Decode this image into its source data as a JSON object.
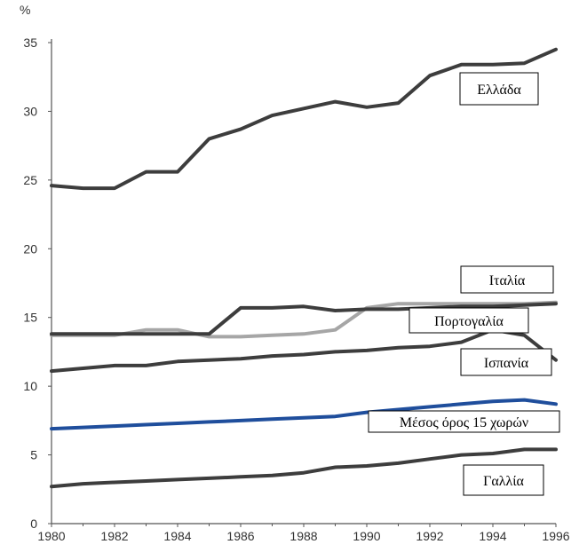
{
  "chart_data": {
    "type": "line",
    "title": "",
    "unit_label": "%",
    "xlabel": "",
    "ylabel": "%",
    "xlim": [
      1980,
      1996
    ],
    "ylim": [
      0,
      35
    ],
    "x_ticks": [
      1980,
      1982,
      1984,
      1986,
      1988,
      1990,
      1992,
      1994,
      1996
    ],
    "y_ticks": [
      0,
      5,
      10,
      15,
      20,
      25,
      30,
      35
    ],
    "grid": false,
    "x": [
      1980,
      1981,
      1982,
      1983,
      1984,
      1985,
      1986,
      1987,
      1988,
      1989,
      1990,
      1991,
      1992,
      1993,
      1994,
      1995,
      1996
    ],
    "series": [
      {
        "name": "Ελλάδα",
        "color": "#3d3d3d",
        "values": [
          24.6,
          24.4,
          24.4,
          25.6,
          25.6,
          28.0,
          28.7,
          29.7,
          30.2,
          30.7,
          30.3,
          30.6,
          32.6,
          33.4,
          33.4,
          33.5,
          34.5
        ]
      },
      {
        "name": "Ιταλία",
        "color": "#3d3d3d",
        "values": [
          13.8,
          13.8,
          13.8,
          13.8,
          13.8,
          13.8,
          15.7,
          15.7,
          15.8,
          15.5,
          15.6,
          15.6,
          15.7,
          15.8,
          15.8,
          15.9,
          16.0
        ]
      },
      {
        "name": "Πορτογαλία",
        "color": "#a6a6a6",
        "values": [
          13.7,
          13.7,
          13.7,
          14.1,
          14.1,
          13.6,
          13.6,
          13.7,
          13.8,
          14.1,
          15.7,
          16.0,
          16.0,
          16.0,
          16.0,
          16.0,
          16.1
        ]
      },
      {
        "name": "Ισπανία",
        "color": "#3d3d3d",
        "values": [
          11.1,
          11.3,
          11.5,
          11.5,
          11.8,
          11.9,
          12.0,
          12.2,
          12.3,
          12.5,
          12.6,
          12.8,
          12.9,
          13.2,
          14.1,
          13.7,
          11.9
        ]
      },
      {
        "name": "Μέσος όρος 15 χωρών",
        "color": "#1f4e9c",
        "values": [
          6.9,
          7.0,
          7.1,
          7.2,
          7.3,
          7.4,
          7.5,
          7.6,
          7.7,
          7.8,
          8.1,
          8.3,
          8.5,
          8.7,
          8.9,
          9.0,
          8.7
        ]
      },
      {
        "name": "Γαλλία",
        "color": "#3d3d3d",
        "values": [
          2.7,
          2.9,
          3.0,
          3.1,
          3.2,
          3.3,
          3.4,
          3.5,
          3.7,
          4.1,
          4.2,
          4.4,
          4.7,
          5.0,
          5.1,
          5.4,
          5.4
        ]
      }
    ],
    "legend_labels": [
      "Ελλάδα",
      "Ιταλία",
      "Πορτογαλία",
      "Ισπανία",
      "Μέσος όρος 15 χωρών",
      "Γαλλία"
    ]
  }
}
